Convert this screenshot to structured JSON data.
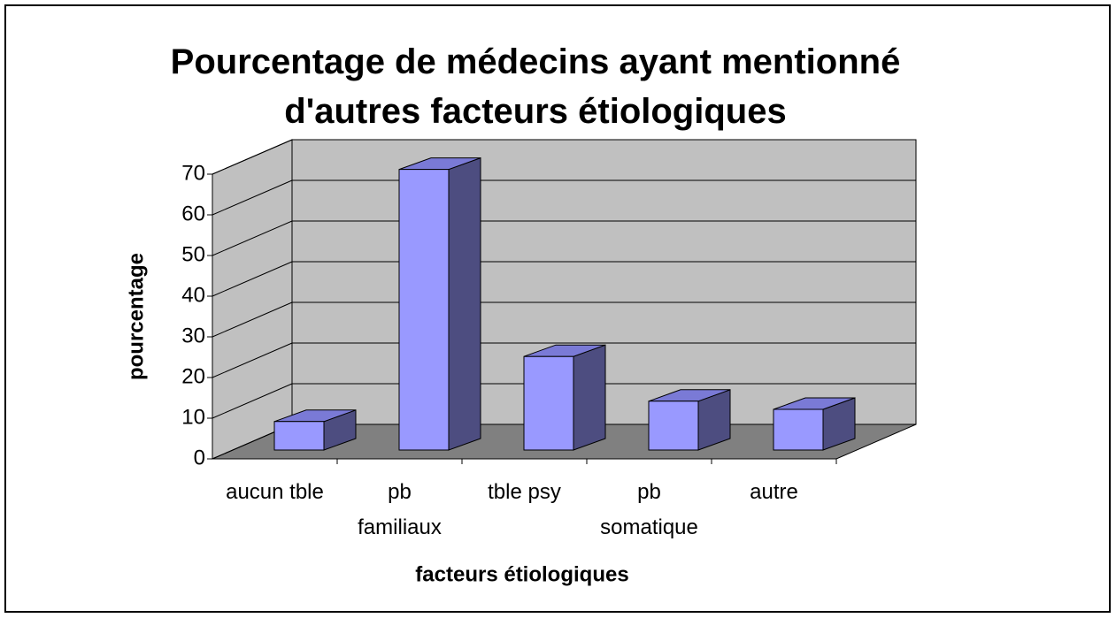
{
  "chart_data": {
    "type": "bar3d",
    "title": "Pourcentage de médecins ayant mentionné\nd'autres facteurs étiologiques",
    "xlabel": "facteurs étiologiques",
    "ylabel": "pourcentage",
    "categories": [
      "aucun tble",
      "pb\nfamiliaux",
      "tble psy",
      "pb\nsomatique",
      "autre"
    ],
    "values": [
      7,
      69,
      23,
      12,
      10
    ],
    "color": "#9999ff",
    "ylim": [
      0,
      70
    ],
    "yticks": [
      0,
      10,
      20,
      30,
      40,
      50,
      60,
      70
    ],
    "grid": true
  }
}
